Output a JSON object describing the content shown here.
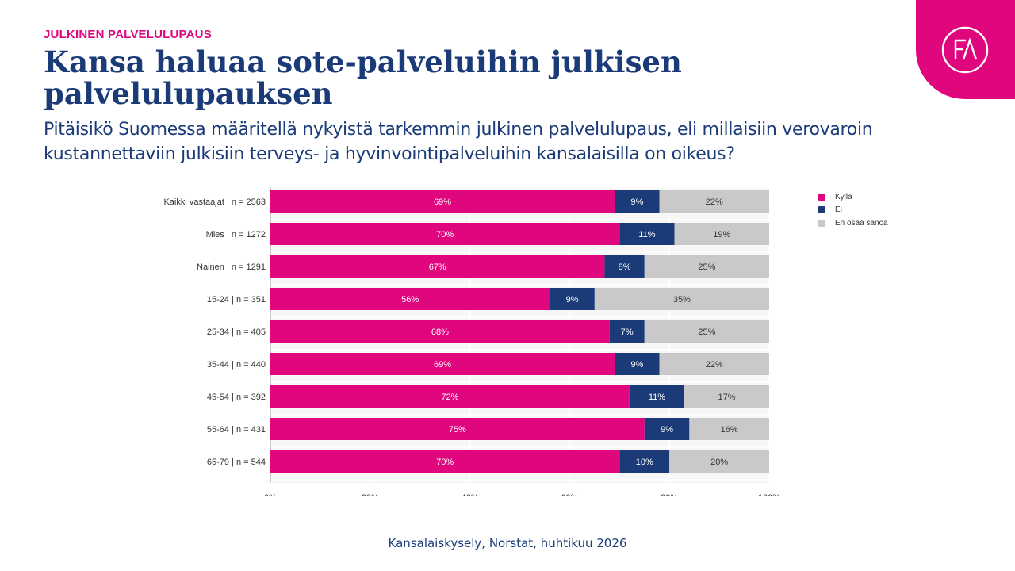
{
  "header": {
    "kicker": "JULKINEN PALVELULUPAUS",
    "title": "Kansa haluaa sote-palveluihin julkisen palvelulupauksen",
    "subtitle": "Pitäisikö Suomessa määritellä nykyistä tarkemmin julkinen palvelulupaus, eli millaisiin verovaroin kustannettaviin julkisiin terveys- ja hyvinvointipalveluihin kansalaisilla on oikeus?"
  },
  "logo": {
    "text": "FA",
    "icon": "fa-logo-icon",
    "color": "#e0067e"
  },
  "source": "Kansalaiskysely, Norstat, huhtikuu 2026",
  "colors": {
    "kylla": "#e0067e",
    "ei": "#1a3b78",
    "eos": "#c9c9c9"
  },
  "chart_data": {
    "type": "bar",
    "orientation": "horizontal",
    "stacked": true,
    "categories": [
      "Kaikki vastaajat | n = 2563",
      "Mies | n = 1272",
      "Nainen | n = 1291",
      "15-24 | n = 351",
      "25-34 | n = 405",
      "35-44 | n = 440",
      "45-54 | n = 392",
      "55-64 | n = 431",
      "65-79 | n = 544"
    ],
    "series": [
      {
        "name": "Kyllä",
        "color": "#e0067e",
        "values": [
          69,
          70,
          67,
          56,
          68,
          69,
          72,
          75,
          70
        ]
      },
      {
        "name": "Ei",
        "color": "#1a3b78",
        "values": [
          9,
          11,
          8,
          9,
          7,
          9,
          11,
          9,
          10
        ]
      },
      {
        "name": "En osaa sanoa",
        "color": "#c9c9c9",
        "values": [
          22,
          19,
          25,
          35,
          25,
          22,
          17,
          16,
          20
        ]
      }
    ],
    "value_suffix": "%",
    "xlim": [
      0,
      100
    ],
    "xticks": [
      "0%",
      "20%",
      "40%",
      "60%",
      "80%",
      "100%"
    ],
    "grid": true,
    "legend_position": "top-right"
  }
}
